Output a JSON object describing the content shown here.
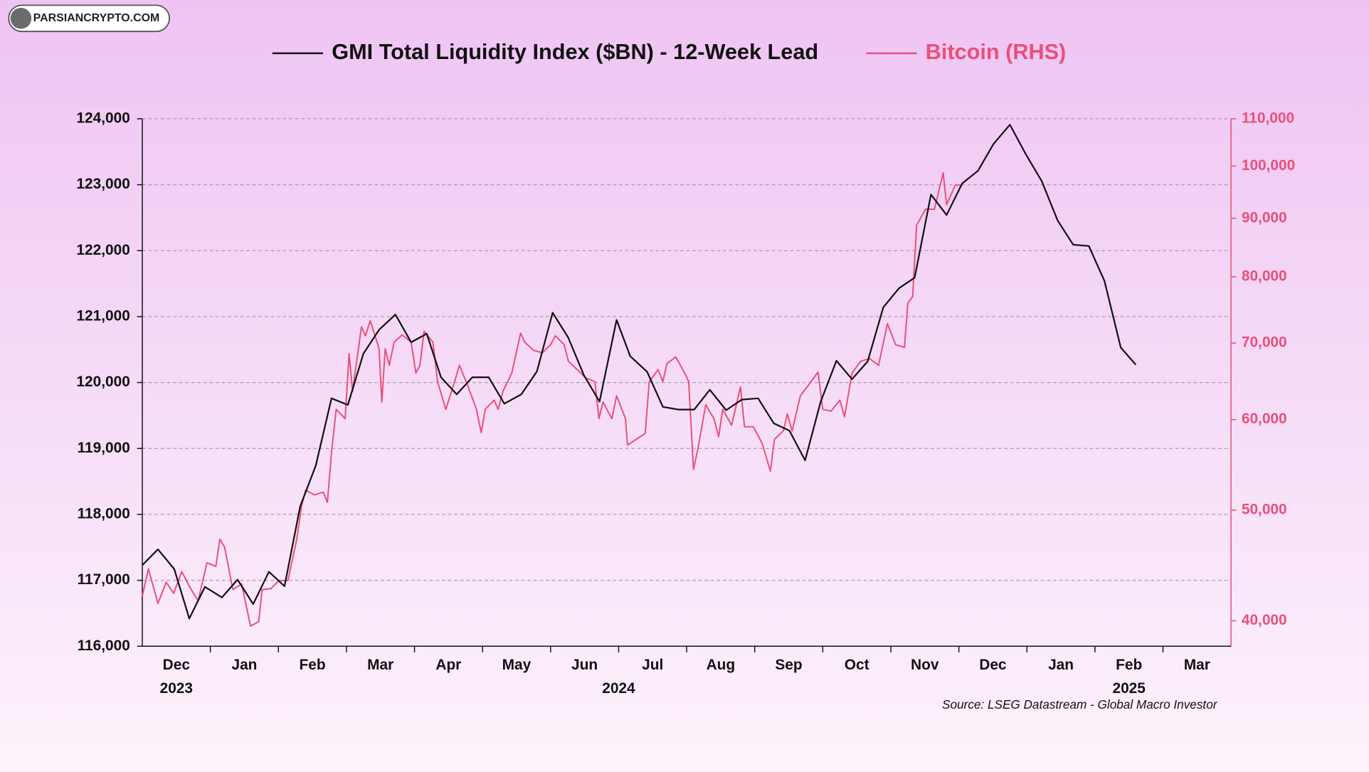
{
  "watermark": "PARSIANCRYPTO.COM",
  "chart_data": {
    "type": "line",
    "source": "Source: LSEG Datastream - Global Macro Investor",
    "categories": [
      "Dec",
      "Jan",
      "Feb",
      "Mar",
      "Apr",
      "May",
      "Jun",
      "Jul",
      "Aug",
      "Sep",
      "Oct",
      "Nov",
      "Dec",
      "Jan",
      "Feb",
      "Mar"
    ],
    "year_labels": [
      {
        "label": "2023",
        "span": [
          0,
          1
        ]
      },
      {
        "label": "2024",
        "span": [
          1,
          13
        ]
      },
      {
        "label": "2025",
        "span": [
          13,
          16
        ]
      }
    ],
    "xlim": [
      0,
      16
    ],
    "ylim": [
      116000,
      124000
    ],
    "yticks": [
      {
        "value": 116000,
        "label": "116,000"
      },
      {
        "value": 117000,
        "label": "117,000"
      },
      {
        "value": 118000,
        "label": "118,000"
      },
      {
        "value": 119000,
        "label": "119,000"
      },
      {
        "value": 120000,
        "label": "120,000"
      },
      {
        "value": 121000,
        "label": "121,000"
      },
      {
        "value": 122000,
        "label": "122,000"
      },
      {
        "value": 123000,
        "label": "123,000"
      },
      {
        "value": 124000,
        "label": "124,000"
      }
    ],
    "y2lim": [
      38000,
      110000
    ],
    "y2log": true,
    "y2ticks": [
      {
        "value": 40000,
        "label": "40,000"
      },
      {
        "value": 50000,
        "label": "50,000"
      },
      {
        "value": 60000,
        "label": "60,000"
      },
      {
        "value": 70000,
        "label": "70,000"
      },
      {
        "value": 80000,
        "label": "80,000"
      },
      {
        "value": 90000,
        "label": "90,000"
      },
      {
        "value": 100000,
        "label": "100,000"
      },
      {
        "value": 110000,
        "label": "110,000"
      }
    ],
    "y2color": "#e8507a",
    "grid": true,
    "series": [
      {
        "name": "GMI Total Liquidity Index ($BN) - 12-Week Lead",
        "color": "#111111",
        "axis": "y",
        "x": [
          0,
          0.23,
          0.47,
          0.69,
          0.92,
          1.17,
          1.4,
          1.63,
          1.86,
          2.09,
          2.32,
          2.55,
          2.78,
          3.02,
          3.25,
          3.48,
          3.72,
          3.95,
          4.18,
          4.39,
          4.62,
          4.85,
          5.09,
          5.32,
          5.57,
          5.8,
          6.03,
          6.26,
          6.49,
          6.72,
          6.97,
          7.17,
          7.42,
          7.65,
          7.88,
          8.11,
          8.34,
          8.58,
          8.81,
          9.05,
          9.28,
          9.51,
          9.74,
          9.97,
          10.2,
          10.43,
          10.66,
          10.89,
          11.12,
          11.35,
          11.59,
          11.82,
          12.05,
          12.28,
          12.51,
          12.75,
          12.98,
          13.22,
          13.45,
          13.68,
          13.91,
          14.14,
          14.38,
          14.6
        ],
        "values": [
          117230,
          117470,
          117170,
          116420,
          116900,
          116740,
          117010,
          116640,
          117130,
          116910,
          118120,
          118740,
          119760,
          119660,
          120440,
          120800,
          121030,
          120610,
          120740,
          120080,
          119820,
          120080,
          120080,
          119680,
          119820,
          120170,
          121060,
          120680,
          120110,
          119710,
          120950,
          120400,
          120160,
          119630,
          119590,
          119590,
          119890,
          119580,
          119740,
          119760,
          119380,
          119270,
          118820,
          119710,
          120330,
          120050,
          120320,
          121140,
          121430,
          121590,
          122850,
          122540,
          123020,
          123210,
          123620,
          123910,
          123470,
          123050,
          122460,
          122090,
          122070,
          121540,
          120530,
          120270
        ]
      },
      {
        "name": "Bitcoin (RHS)",
        "color": "#e8507a",
        "axis": "y2",
        "x": [
          0,
          0.09,
          0.23,
          0.35,
          0.46,
          0.58,
          0.71,
          0.82,
          0.95,
          1.08,
          1.14,
          1.21,
          1.33,
          1.46,
          1.59,
          1.71,
          1.76,
          1.89,
          2.01,
          2.14,
          2.27,
          2.34,
          2.4,
          2.53,
          2.66,
          2.72,
          2.78,
          2.85,
          2.98,
          3.04,
          3.09,
          3.22,
          3.28,
          3.35,
          3.48,
          3.52,
          3.57,
          3.63,
          3.7,
          3.82,
          3.95,
          4.02,
          4.08,
          4.14,
          4.27,
          4.34,
          4.46,
          4.59,
          4.66,
          4.79,
          4.91,
          4.98,
          5.04,
          5.17,
          5.23,
          5.3,
          5.43,
          5.56,
          5.62,
          5.75,
          5.88,
          6.0,
          6.07,
          6.2,
          6.26,
          6.39,
          6.52,
          6.65,
          6.71,
          6.77,
          6.9,
          6.97,
          7.1,
          7.13,
          7.26,
          7.39,
          7.45,
          7.58,
          7.65,
          7.71,
          7.84,
          7.97,
          8.03,
          8.1,
          8.16,
          8.28,
          8.4,
          8.47,
          8.53,
          8.66,
          8.79,
          8.85,
          8.98,
          9.11,
          9.23,
          9.29,
          9.42,
          9.48,
          9.55,
          9.67,
          9.8,
          9.93,
          10.0,
          10.12,
          10.25,
          10.32,
          10.43,
          10.56,
          10.69,
          10.82,
          10.95,
          11.07,
          11.2,
          11.25,
          11.32,
          11.38,
          11.51,
          11.64,
          11.77,
          11.82,
          11.95,
          12.05
        ],
        "values": [
          42050,
          44410,
          41420,
          43230,
          42280,
          44170,
          42680,
          41650,
          44960,
          44640,
          47160,
          46380,
          42600,
          43070,
          39580,
          39930,
          42600,
          42680,
          43380,
          43380,
          47160,
          50390,
          52040,
          51550,
          51840,
          50780,
          56210,
          61250,
          60110,
          68520,
          63520,
          72340,
          71040,
          73250,
          69200,
          62160,
          69200,
          66930,
          70130,
          71170,
          70130,
          65910,
          66930,
          71690,
          70130,
          64770,
          61250,
          64770,
          66930,
          64090,
          61250,
          58450,
          61250,
          62390,
          61250,
          63520,
          65910,
          71430,
          70130,
          68980,
          68640,
          69770,
          71040,
          69770,
          67500,
          66360,
          65230,
          64770,
          60110,
          62160,
          60110,
          62950,
          60110,
          56990,
          57660,
          58350,
          64770,
          66360,
          64770,
          67160,
          68070,
          65910,
          64770,
          54270,
          56400,
          61820,
          60110,
          57950,
          61250,
          59320,
          64090,
          59130,
          59130,
          57180,
          54070,
          57660,
          58640,
          60680,
          58640,
          62950,
          64430,
          66020,
          61250,
          61020,
          62390,
          60340,
          65910,
          67500,
          67840,
          66930,
          72790,
          69770,
          69390,
          75850,
          76890,
          88790,
          91670,
          91670,
          98660,
          92500,
          96330,
          96160
        ]
      }
    ]
  }
}
